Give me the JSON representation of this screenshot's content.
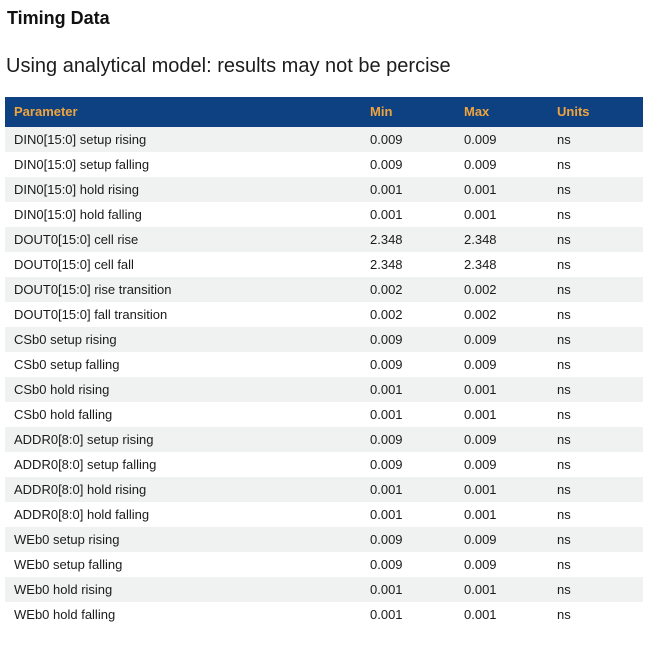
{
  "page": {
    "title": "Timing Data",
    "subtitle": "Using analytical model: results may not be percise"
  },
  "colors": {
    "header_bg": "#0e4182",
    "header_text": "#f0a43c",
    "row_stripe_bg": "#f0f1f1",
    "body_text": "#1b1b1b"
  },
  "table": {
    "columns": [
      "Parameter",
      "Min",
      "Max",
      "Units"
    ],
    "rows": [
      {
        "parameter": "DIN0[15:0] setup rising",
        "min": "0.009",
        "max": "0.009",
        "units": "ns"
      },
      {
        "parameter": "DIN0[15:0] setup falling",
        "min": "0.009",
        "max": "0.009",
        "units": "ns"
      },
      {
        "parameter": "DIN0[15:0] hold rising",
        "min": "0.001",
        "max": "0.001",
        "units": "ns"
      },
      {
        "parameter": "DIN0[15:0] hold falling",
        "min": "0.001",
        "max": "0.001",
        "units": "ns"
      },
      {
        "parameter": "DOUT0[15:0] cell rise",
        "min": "2.348",
        "max": "2.348",
        "units": "ns"
      },
      {
        "parameter": "DOUT0[15:0] cell fall",
        "min": "2.348",
        "max": "2.348",
        "units": "ns"
      },
      {
        "parameter": "DOUT0[15:0] rise transition",
        "min": "0.002",
        "max": "0.002",
        "units": "ns"
      },
      {
        "parameter": "DOUT0[15:0] fall transition",
        "min": "0.002",
        "max": "0.002",
        "units": "ns"
      },
      {
        "parameter": "CSb0 setup rising",
        "min": "0.009",
        "max": "0.009",
        "units": "ns"
      },
      {
        "parameter": "CSb0 setup falling",
        "min": "0.009",
        "max": "0.009",
        "units": "ns"
      },
      {
        "parameter": "CSb0 hold rising",
        "min": "0.001",
        "max": "0.001",
        "units": "ns"
      },
      {
        "parameter": "CSb0 hold falling",
        "min": "0.001",
        "max": "0.001",
        "units": "ns"
      },
      {
        "parameter": "ADDR0[8:0] setup rising",
        "min": "0.009",
        "max": "0.009",
        "units": "ns"
      },
      {
        "parameter": "ADDR0[8:0] setup falling",
        "min": "0.009",
        "max": "0.009",
        "units": "ns"
      },
      {
        "parameter": "ADDR0[8:0] hold rising",
        "min": "0.001",
        "max": "0.001",
        "units": "ns"
      },
      {
        "parameter": "ADDR0[8:0] hold falling",
        "min": "0.001",
        "max": "0.001",
        "units": "ns"
      },
      {
        "parameter": "WEb0 setup rising",
        "min": "0.009",
        "max": "0.009",
        "units": "ns"
      },
      {
        "parameter": "WEb0 setup falling",
        "min": "0.009",
        "max": "0.009",
        "units": "ns"
      },
      {
        "parameter": "WEb0 hold rising",
        "min": "0.001",
        "max": "0.001",
        "units": "ns"
      },
      {
        "parameter": "WEb0 hold falling",
        "min": "0.001",
        "max": "0.001",
        "units": "ns"
      }
    ]
  }
}
